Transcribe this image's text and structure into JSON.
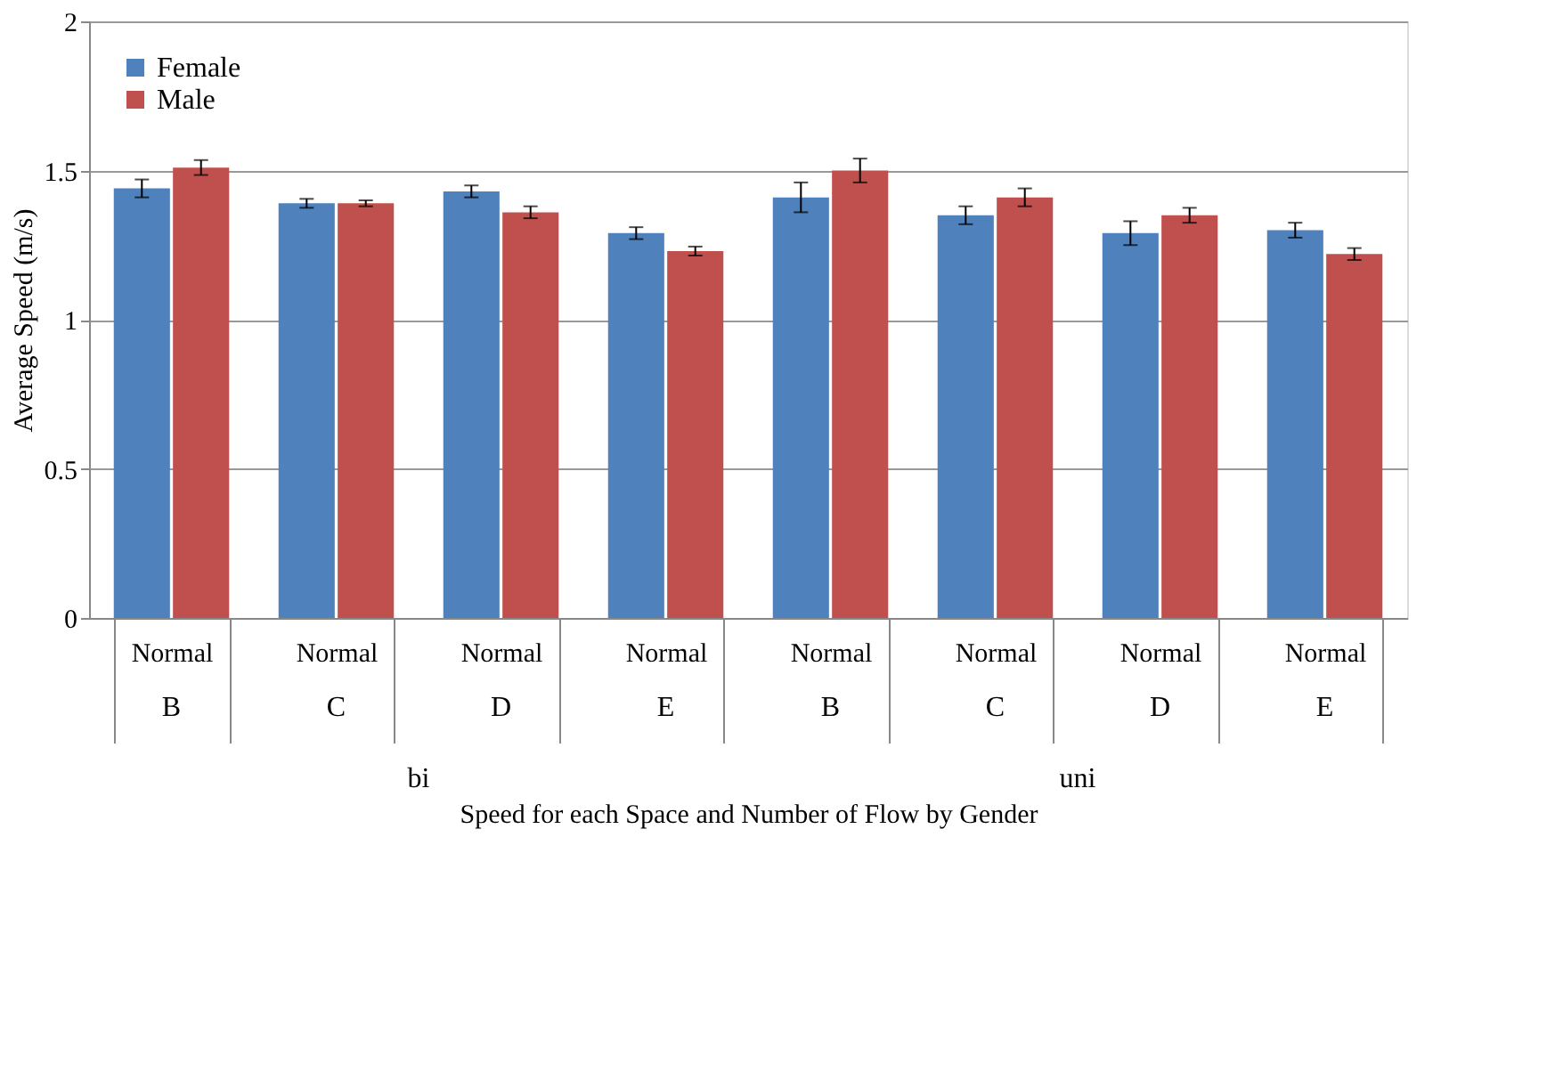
{
  "chart_data": {
    "type": "bar",
    "xlabel": "Speed for each Space and Number of Flow by Gender",
    "ylabel": "Average Speed (m/s)",
    "categories": [
      "Normal",
      "Normal",
      "Normal",
      "Normal",
      "Normal",
      "Normal",
      "Normal",
      "Normal"
    ],
    "annotations": [
      "B",
      "C",
      "D",
      "E",
      "B",
      "C",
      "D",
      "E",
      "bi",
      "uni"
    ],
    "series": [
      {
        "name": "Female",
        "color": "#4f81bd",
        "values": [
          1.44,
          1.39,
          1.43,
          1.29,
          1.41,
          1.35,
          1.29,
          1.3
        ],
        "errors": [
          0.03,
          0.015,
          0.02,
          0.02,
          0.05,
          0.03,
          0.04,
          0.025
        ]
      },
      {
        "name": "Male",
        "color": "#c0504d",
        "values": [
          1.51,
          1.39,
          1.36,
          1.23,
          1.5,
          1.41,
          1.35,
          1.22
        ],
        "errors": [
          0.025,
          0.01,
          0.02,
          0.015,
          0.04,
          0.03,
          0.025,
          0.02
        ]
      }
    ],
    "ylim": [
      0,
      2
    ],
    "yticks": [
      0,
      0.5,
      1,
      1.5,
      2
    ],
    "grid": "y",
    "legend": "top left"
  }
}
